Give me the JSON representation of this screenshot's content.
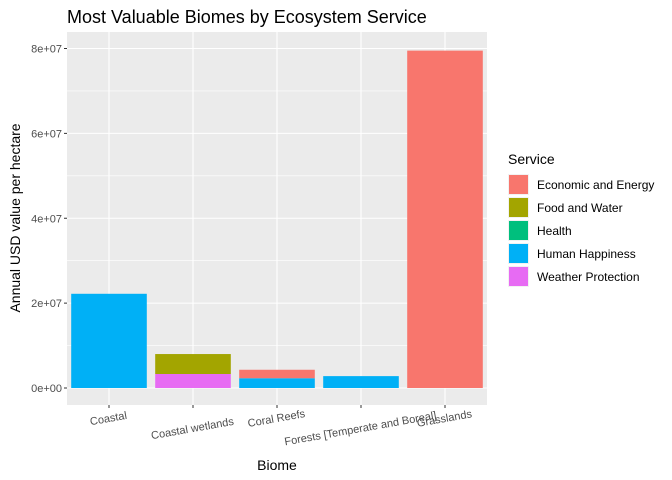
{
  "chart_data": {
    "type": "bar",
    "stacked": true,
    "title": "Most Valuable Biomes by Ecosystem Service",
    "xlabel": "Biome",
    "ylabel": "Annual USD value per hectare",
    "ylim": [
      0,
      84000000
    ],
    "yticks": [
      0,
      20000000,
      40000000,
      60000000,
      80000000
    ],
    "ytick_labels": [
      "0e+00",
      "2e+07",
      "4e+07",
      "6e+07",
      "8e+07"
    ],
    "categories": [
      "Coastal",
      "Coastal wetlands",
      "Coral Reefs",
      "Forests [Temperate and Boreal]",
      "Grasslands"
    ],
    "legend_title": "Service",
    "legend_position": "right",
    "grid": true,
    "series": [
      {
        "name": "Economic and Energy",
        "color": "#F8766D",
        "values": [
          0,
          0,
          2000000,
          0,
          79500000
        ]
      },
      {
        "name": "Food and Water",
        "color": "#A3A500",
        "values": [
          0,
          4700000,
          0,
          0,
          0
        ]
      },
      {
        "name": "Health",
        "color": "#00BF7D",
        "values": [
          0,
          0,
          0,
          0,
          0
        ]
      },
      {
        "name": "Human Happiness",
        "color": "#00B0F6",
        "values": [
          22200000,
          0,
          2300000,
          2800000,
          0
        ]
      },
      {
        "name": "Weather Protection",
        "color": "#E76BF3",
        "values": [
          0,
          3300000,
          0,
          0,
          0
        ]
      }
    ]
  }
}
